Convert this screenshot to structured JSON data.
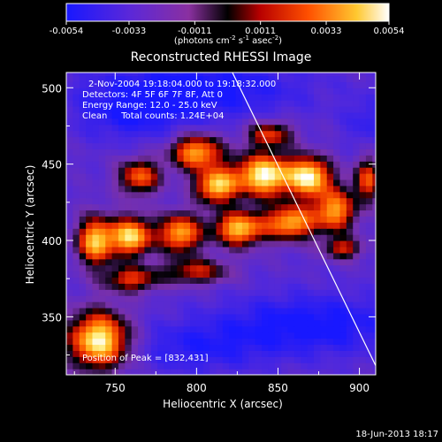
{
  "chart_data": {
    "type": "heatmap",
    "title": "Reconstructed RHESSI Image",
    "xlabel": "Heliocentric X (arcsec)",
    "ylabel": "Heliocentric Y (arcsec)",
    "xlim": [
      720,
      910
    ],
    "ylim": [
      312,
      510
    ],
    "x_ticks": [
      750,
      800,
      850,
      900
    ],
    "y_ticks": [
      350,
      400,
      450,
      500
    ],
    "colorbar": {
      "min": -0.0054,
      "max": 0.0054,
      "tick_values": [
        -0.0054,
        -0.0033,
        -0.0011,
        0.0011,
        0.0033,
        0.0054
      ],
      "tick_labels": [
        "-0.0054",
        "-0.0033",
        "-0.0011",
        "0.0011",
        "0.0033",
        "0.0054"
      ],
      "units_base": "(photons cm",
      "units_sup1": "-2",
      "units_mid1": " s",
      "units_sup2": "-1",
      "units_mid2": " asec",
      "units_sup3": "-2",
      "units_end": ")"
    },
    "annotations": {
      "time_range": "2-Nov-2004 19:18:04.000 to 19:18:32.000",
      "detectors": "Detectors: 4F 5F 6F 7F 8F, Att 0",
      "energy": "Energy Range: 12.0 - 25.0 keV",
      "method": "Clean     Total counts: 1.24E+04",
      "peak": "Position of Peak = [832,431]"
    },
    "peak_position": [
      832,
      431
    ],
    "limb_line": [
      [
        822,
        510
      ],
      [
        910,
        318
      ]
    ],
    "emission_blobs": [
      {
        "x": 842,
        "y": 443,
        "sx": 13,
        "sy": 10,
        "a": 1.0
      },
      {
        "x": 870,
        "y": 442,
        "sx": 9,
        "sy": 9,
        "a": 0.9
      },
      {
        "x": 812,
        "y": 436,
        "sx": 9,
        "sy": 8,
        "a": 0.85
      },
      {
        "x": 800,
        "y": 458,
        "sx": 11,
        "sy": 8,
        "a": 0.8
      },
      {
        "x": 760,
        "y": 403,
        "sx": 9,
        "sy": 9,
        "a": 0.9
      },
      {
        "x": 738,
        "y": 400,
        "sx": 8,
        "sy": 11,
        "a": 0.85
      },
      {
        "x": 790,
        "y": 405,
        "sx": 9,
        "sy": 9,
        "a": 0.8
      },
      {
        "x": 826,
        "y": 408,
        "sx": 11,
        "sy": 8,
        "a": 0.85
      },
      {
        "x": 858,
        "y": 412,
        "sx": 11,
        "sy": 8,
        "a": 0.8
      },
      {
        "x": 885,
        "y": 420,
        "sx": 9,
        "sy": 10,
        "a": 0.75
      },
      {
        "x": 740,
        "y": 335,
        "sx": 13,
        "sy": 13,
        "a": 1.0
      },
      {
        "x": 765,
        "y": 442,
        "sx": 9,
        "sy": 8,
        "a": 0.65
      },
      {
        "x": 905,
        "y": 440,
        "sx": 6,
        "sy": 10,
        "a": 0.6
      },
      {
        "x": 845,
        "y": 470,
        "sx": 10,
        "sy": 6,
        "a": 0.55
      },
      {
        "x": 890,
        "y": 395,
        "sx": 8,
        "sy": 5,
        "a": 0.5
      },
      {
        "x": 760,
        "y": 375,
        "sx": 12,
        "sy": 6,
        "a": 0.55
      },
      {
        "x": 800,
        "y": 380,
        "sx": 14,
        "sy": 6,
        "a": 0.5
      }
    ],
    "dark_blobs": [
      {
        "x": 800,
        "y": 500,
        "sx": 45,
        "sy": 14,
        "a": 0.9
      },
      {
        "x": 870,
        "y": 345,
        "sx": 40,
        "sy": 14,
        "a": 0.9
      },
      {
        "x": 760,
        "y": 482,
        "sx": 25,
        "sy": 12,
        "a": 0.6
      },
      {
        "x": 905,
        "y": 478,
        "sx": 10,
        "sy": 12,
        "a": 0.5
      },
      {
        "x": 800,
        "y": 330,
        "sx": 30,
        "sy": 12,
        "a": 0.6
      }
    ]
  },
  "footer": {
    "timestamp": "18-Jun-2013 18:17"
  }
}
